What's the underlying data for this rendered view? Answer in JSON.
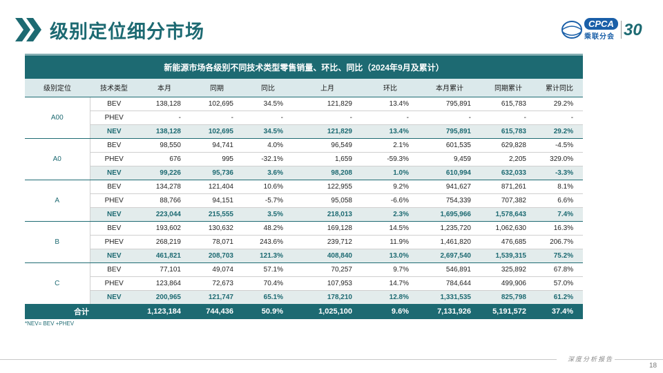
{
  "header": {
    "title": "级别定位细分市场",
    "logo_text": "CPCA",
    "logo_sub": "乘联分会",
    "logo_30": "30"
  },
  "table": {
    "caption": "新能源市场各级别不同技术类型零售销量、环比、同比（2024年9月及累计）",
    "columns": [
      "级别定位",
      "技术类型",
      "本月",
      "同期",
      "同比",
      "上月",
      "环比",
      "本月累计",
      "同期累计",
      "累计同比"
    ],
    "groups": [
      {
        "level": "A00",
        "rows": [
          {
            "type": "BEV",
            "values": [
              "138,128",
              "102,695",
              "34.5%",
              "121,829",
              "13.4%",
              "795,891",
              "615,783",
              "29.2%"
            ]
          },
          {
            "type": "PHEV",
            "values": [
              "-",
              "-",
              "-",
              "-",
              "-",
              "-",
              "-",
              "-"
            ]
          },
          {
            "type": "NEV",
            "values": [
              "138,128",
              "102,695",
              "34.5%",
              "121,829",
              "13.4%",
              "795,891",
              "615,783",
              "29.2%"
            ]
          }
        ]
      },
      {
        "level": "A0",
        "rows": [
          {
            "type": "BEV",
            "values": [
              "98,550",
              "94,741",
              "4.0%",
              "96,549",
              "2.1%",
              "601,535",
              "629,828",
              "-4.5%"
            ]
          },
          {
            "type": "PHEV",
            "values": [
              "676",
              "995",
              "-32.1%",
              "1,659",
              "-59.3%",
              "9,459",
              "2,205",
              "329.0%"
            ]
          },
          {
            "type": "NEV",
            "values": [
              "99,226",
              "95,736",
              "3.6%",
              "98,208",
              "1.0%",
              "610,994",
              "632,033",
              "-3.3%"
            ]
          }
        ]
      },
      {
        "level": "A",
        "rows": [
          {
            "type": "BEV",
            "values": [
              "134,278",
              "121,404",
              "10.6%",
              "122,955",
              "9.2%",
              "941,627",
              "871,261",
              "8.1%"
            ]
          },
          {
            "type": "PHEV",
            "values": [
              "88,766",
              "94,151",
              "-5.7%",
              "95,058",
              "-6.6%",
              "754,339",
              "707,382",
              "6.6%"
            ]
          },
          {
            "type": "NEV",
            "values": [
              "223,044",
              "215,555",
              "3.5%",
              "218,013",
              "2.3%",
              "1,695,966",
              "1,578,643",
              "7.4%"
            ]
          }
        ]
      },
      {
        "level": "B",
        "rows": [
          {
            "type": "BEV",
            "values": [
              "193,602",
              "130,632",
              "48.2%",
              "169,128",
              "14.5%",
              "1,235,720",
              "1,062,630",
              "16.3%"
            ]
          },
          {
            "type": "PHEV",
            "values": [
              "268,219",
              "78,071",
              "243.6%",
              "239,712",
              "11.9%",
              "1,461,820",
              "476,685",
              "206.7%"
            ]
          },
          {
            "type": "NEV",
            "values": [
              "461,821",
              "208,703",
              "121.3%",
              "408,840",
              "13.0%",
              "2,697,540",
              "1,539,315",
              "75.2%"
            ]
          }
        ]
      },
      {
        "level": "C",
        "rows": [
          {
            "type": "BEV",
            "values": [
              "77,101",
              "49,074",
              "57.1%",
              "70,257",
              "9.7%",
              "546,891",
              "325,892",
              "67.8%"
            ]
          },
          {
            "type": "PHEV",
            "values": [
              "123,864",
              "72,673",
              "70.4%",
              "107,953",
              "14.7%",
              "784,644",
              "499,906",
              "57.0%"
            ]
          },
          {
            "type": "NEV",
            "values": [
              "200,965",
              "121,747",
              "65.1%",
              "178,210",
              "12.8%",
              "1,331,535",
              "825,798",
              "61.2%"
            ]
          }
        ]
      }
    ],
    "total": {
      "label": "合计",
      "values": [
        "1,123,184",
        "744,436",
        "50.9%",
        "1,025,100",
        "9.6%",
        "7,131,926",
        "5,191,572",
        "37.4%"
      ]
    }
  },
  "footnote": "*NEV= BEV +PHEV",
  "footer": {
    "label": "深度分析报告",
    "page_number": "18"
  },
  "colors": {
    "brand_teal": "#1d6a72",
    "header_band": "#dbe9eb",
    "nev_band": "#e3ecec",
    "logo_blue": "#1a5fa8"
  }
}
